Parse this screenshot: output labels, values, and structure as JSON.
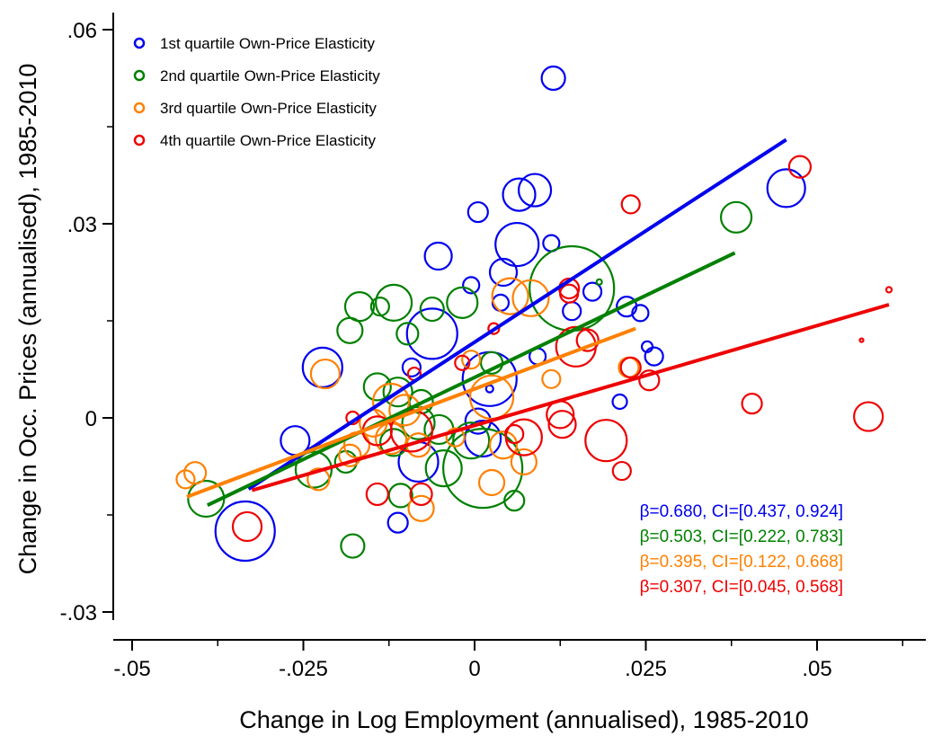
{
  "chart_data": {
    "type": "scatter",
    "title": "",
    "xlabel": "Change in Log Employment (annualised), 1985-2010",
    "ylabel": "Change in Occ. Prices (annualised), 1985-2010",
    "xlim": [
      -0.052,
      0.065
    ],
    "ylim": [
      -0.031,
      0.062
    ],
    "xticks": [
      -0.05,
      -0.025,
      0,
      0.025,
      0.05
    ],
    "xtick_labels": [
      "-.05",
      "-.025",
      "0",
      ".025",
      ".05"
    ],
    "yticks": [
      -0.03,
      0,
      0.03,
      0.06
    ],
    "ytick_labels": [
      "-.03",
      "0",
      ".03",
      ".06"
    ],
    "grid": false,
    "legend_position": "top-left",
    "marker": "hollow circle (size proportional to employment weight)",
    "series": [
      {
        "name": "1st quartile Own-Price Elasticity",
        "color": "#0000ee",
        "fit": {
          "x": [
            -0.033,
            0.0455
          ],
          "y": [
            -0.011,
            0.043
          ]
        },
        "annotation": "β=0.680, CI=[0.437, 0.924]",
        "points": [
          {
            "x": 0.0115,
            "y": 0.0525,
            "r": 13
          },
          {
            "x": 0.0455,
            "y": 0.0355,
            "r": 21
          },
          {
            "x": 0.0088,
            "y": 0.0352,
            "r": 18
          },
          {
            "x": 0.0065,
            "y": 0.0345,
            "r": 18
          },
          {
            "x": 0.0005,
            "y": 0.0318,
            "r": 11
          },
          {
            "x": 0.0062,
            "y": 0.0268,
            "r": 24
          },
          {
            "x": 0.0112,
            "y": 0.027,
            "r": 9
          },
          {
            "x": -0.0053,
            "y": 0.025,
            "r": 15
          },
          {
            "x": 0.0042,
            "y": 0.0225,
            "r": 15
          },
          {
            "x": 0.0172,
            "y": 0.0195,
            "r": 10
          },
          {
            "x": -0.0005,
            "y": 0.0205,
            "r": 9
          },
          {
            "x": 0.0038,
            "y": 0.0178,
            "r": 9
          },
          {
            "x": 0.0222,
            "y": 0.0172,
            "r": 11
          },
          {
            "x": 0.0142,
            "y": 0.0165,
            "r": 10
          },
          {
            "x": 0.0242,
            "y": 0.0162,
            "r": 9
          },
          {
            "x": -0.0062,
            "y": 0.013,
            "r": 28
          },
          {
            "x": 0.0252,
            "y": 0.011,
            "r": 6
          },
          {
            "x": 0.0262,
            "y": 0.0095,
            "r": 10
          },
          {
            "x": 0.0092,
            "y": 0.0095,
            "r": 9
          },
          {
            "x": -0.0222,
            "y": 0.0078,
            "r": 22
          },
          {
            "x": -0.0092,
            "y": 0.0078,
            "r": 10
          },
          {
            "x": 0.0022,
            "y": 0.006,
            "r": 30
          },
          {
            "x": 0.0022,
            "y": 0.0045,
            "r": 4
          },
          {
            "x": 0.0212,
            "y": 0.0025,
            "r": 8
          },
          {
            "x": -0.0262,
            "y": -0.0035,
            "r": 16
          },
          {
            "x": 0.0012,
            "y": -0.0032,
            "r": 20
          },
          {
            "x": 0.0005,
            "y": -0.0005,
            "r": 14
          },
          {
            "x": -0.0082,
            "y": -0.0068,
            "r": 22
          },
          {
            "x": -0.0112,
            "y": -0.0162,
            "r": 11
          },
          {
            "x": -0.0335,
            "y": -0.0175,
            "r": 33
          }
        ]
      },
      {
        "name": "2nd quartile Own-Price Elasticity",
        "color": "#008000",
        "fit": {
          "x": [
            -0.039,
            0.038
          ],
          "y": [
            -0.0135,
            0.0255
          ]
        },
        "annotation": "β=0.503, CI=[0.222, 0.783]",
        "points": [
          {
            "x": 0.0382,
            "y": 0.031,
            "r": 17
          },
          {
            "x": 0.0142,
            "y": 0.02,
            "r": 47
          },
          {
            "x": 0.0182,
            "y": 0.021,
            "r": 3
          },
          {
            "x": -0.0118,
            "y": 0.0178,
            "r": 20
          },
          {
            "x": -0.0168,
            "y": 0.0172,
            "r": 16
          },
          {
            "x": -0.0138,
            "y": 0.0172,
            "r": 10
          },
          {
            "x": -0.0062,
            "y": 0.0168,
            "r": 13
          },
          {
            "x": -0.0018,
            "y": 0.0178,
            "r": 17
          },
          {
            "x": -0.0182,
            "y": 0.0135,
            "r": 14
          },
          {
            "x": -0.0098,
            "y": 0.013,
            "r": 12
          },
          {
            "x": -0.0142,
            "y": 0.0048,
            "r": 15
          },
          {
            "x": -0.0112,
            "y": 0.004,
            "r": 16
          },
          {
            "x": -0.0078,
            "y": 0.0025,
            "r": 13
          },
          {
            "x": -0.0082,
            "y": -0.0008,
            "r": 18
          },
          {
            "x": -0.0052,
            "y": -0.0018,
            "r": 16
          },
          {
            "x": -0.0188,
            "y": -0.0068,
            "r": 12
          },
          {
            "x": -0.0235,
            "y": -0.008,
            "r": 20
          },
          {
            "x": -0.0118,
            "y": -0.0038,
            "r": 15
          },
          {
            "x": -0.0045,
            "y": -0.0078,
            "r": 20
          },
          {
            "x": -0.0005,
            "y": -0.0035,
            "r": 20
          },
          {
            "x": 0.0012,
            "y": -0.0078,
            "r": 44
          },
          {
            "x": 0.0025,
            "y": 0.0085,
            "r": 12
          },
          {
            "x": -0.0108,
            "y": -0.012,
            "r": 13
          },
          {
            "x": 0.0058,
            "y": -0.0128,
            "r": 11
          },
          {
            "x": -0.0392,
            "y": -0.0125,
            "r": 20
          },
          {
            "x": -0.0178,
            "y": -0.0198,
            "r": 13
          }
        ]
      },
      {
        "name": "3rd quartile Own-Price Elasticity",
        "color": "#ff8000",
        "fit": {
          "x": [
            -0.042,
            0.0235
          ],
          "y": [
            -0.0122,
            0.0138
          ]
        },
        "annotation": "β=0.395, CI=[0.122, 0.668]",
        "points": [
          {
            "x": 0.0052,
            "y": 0.0188,
            "r": 20
          },
          {
            "x": 0.0082,
            "y": 0.0185,
            "r": 20
          },
          {
            "x": -0.0218,
            "y": 0.0068,
            "r": 16
          },
          {
            "x": 0.0112,
            "y": 0.006,
            "r": 10
          },
          {
            "x": 0.0025,
            "y": 0.0032,
            "r": 24
          },
          {
            "x": -0.0005,
            "y": 0.009,
            "r": 10
          },
          {
            "x": -0.0122,
            "y": 0.0025,
            "r": 20
          },
          {
            "x": -0.0102,
            "y": 0.0012,
            "r": 17
          },
          {
            "x": -0.0148,
            "y": -0.0008,
            "r": 15
          },
          {
            "x": -0.0122,
            "y": -0.0032,
            "r": 17
          },
          {
            "x": -0.0172,
            "y": -0.0042,
            "r": 14
          },
          {
            "x": -0.0182,
            "y": -0.0058,
            "r": 12
          },
          {
            "x": -0.0082,
            "y": -0.0042,
            "r": 13
          },
          {
            "x": -0.0028,
            "y": -0.003,
            "r": 10
          },
          {
            "x": 0.0042,
            "y": -0.0042,
            "r": 15
          },
          {
            "x": 0.0072,
            "y": -0.0068,
            "r": 14
          },
          {
            "x": 0.0025,
            "y": -0.01,
            "r": 14
          },
          {
            "x": -0.0228,
            "y": -0.0095,
            "r": 12
          },
          {
            "x": -0.0078,
            "y": -0.014,
            "r": 14
          },
          {
            "x": -0.0408,
            "y": -0.0085,
            "r": 12
          },
          {
            "x": -0.0422,
            "y": -0.0095,
            "r": 10
          },
          {
            "x": 0.0225,
            "y": 0.0078,
            "r": 11
          }
        ]
      },
      {
        "name": "4th quartile Own-Price Elasticity",
        "color": "#ee0000",
        "fit": {
          "x": [
            -0.0325,
            0.0605
          ],
          "y": [
            -0.0112,
            0.0175
          ]
        },
        "annotation": "β=0.307, CI=[0.045, 0.568]",
        "points": [
          {
            "x": 0.0475,
            "y": 0.0388,
            "r": 12
          },
          {
            "x": 0.0228,
            "y": 0.033,
            "r": 10
          },
          {
            "x": 0.0138,
            "y": 0.02,
            "r": 11
          },
          {
            "x": 0.0138,
            "y": 0.0192,
            "r": 10
          },
          {
            "x": 0.0605,
            "y": 0.0198,
            "r": 3
          },
          {
            "x": 0.0565,
            "y": 0.012,
            "r": 2
          },
          {
            "x": 0.0028,
            "y": 0.0138,
            "r": 6
          },
          {
            "x": 0.0148,
            "y": 0.011,
            "r": 22
          },
          {
            "x": 0.0165,
            "y": 0.012,
            "r": 12
          },
          {
            "x": 0.0228,
            "y": 0.0078,
            "r": 11
          },
          {
            "x": 0.0255,
            "y": 0.0058,
            "r": 11
          },
          {
            "x": -0.0088,
            "y": 0.0068,
            "r": 7
          },
          {
            "x": -0.0018,
            "y": 0.0085,
            "r": 8
          },
          {
            "x": -0.0178,
            "y": 0.0,
            "r": 7
          },
          {
            "x": -0.0092,
            "y": -0.002,
            "r": 23
          },
          {
            "x": -0.0142,
            "y": -0.002,
            "r": 16
          },
          {
            "x": 0.0058,
            "y": -0.0025,
            "r": 10
          },
          {
            "x": 0.0072,
            "y": -0.003,
            "r": 20
          },
          {
            "x": 0.0125,
            "y": 0.0005,
            "r": 15
          },
          {
            "x": 0.0128,
            "y": -0.001,
            "r": 15
          },
          {
            "x": 0.0192,
            "y": -0.0035,
            "r": 23
          },
          {
            "x": 0.0405,
            "y": 0.0022,
            "r": 11
          },
          {
            "x": 0.0575,
            "y": 0.0002,
            "r": 16
          },
          {
            "x": -0.0142,
            "y": -0.0118,
            "r": 12
          },
          {
            "x": -0.0078,
            "y": -0.0118,
            "r": 12
          },
          {
            "x": 0.0215,
            "y": -0.0082,
            "r": 10
          },
          {
            "x": -0.0332,
            "y": -0.0168,
            "r": 16
          }
        ]
      }
    ]
  }
}
